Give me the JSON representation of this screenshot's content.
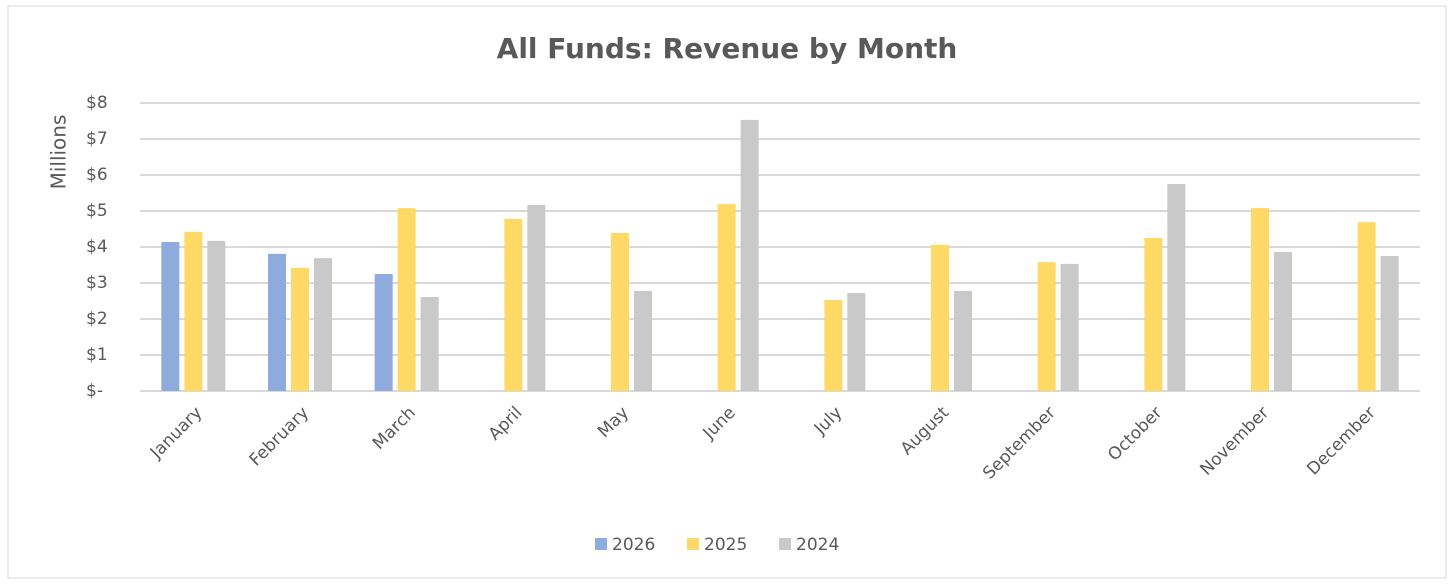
{
  "chart_data": {
    "type": "bar",
    "title": "All Funds: Revenue by Month",
    "y_label": "Millions",
    "categories": [
      "January",
      "February",
      "March",
      "April",
      "May",
      "June",
      "July",
      "August",
      "September",
      "October",
      "November",
      "December"
    ],
    "series": [
      {
        "name": "2026",
        "color": "#8faadc",
        "values": [
          4.14,
          3.81,
          3.25,
          null,
          null,
          null,
          null,
          null,
          null,
          null,
          null,
          null
        ]
      },
      {
        "name": "2025",
        "color": "#ffd966",
        "values": [
          4.42,
          3.42,
          5.08,
          4.78,
          4.39,
          5.19,
          2.53,
          4.06,
          3.58,
          4.25,
          5.08,
          4.69
        ]
      },
      {
        "name": "2024",
        "color": "#c9c9c9",
        "values": [
          4.17,
          3.69,
          2.61,
          5.17,
          2.78,
          7.53,
          2.72,
          2.78,
          3.53,
          5.75,
          3.86,
          3.75
        ]
      }
    ],
    "ylim": [
      0,
      8
    ],
    "yticks": [
      {
        "value": 0,
        "label": "$-"
      },
      {
        "value": 1,
        "label": "$1"
      },
      {
        "value": 2,
        "label": "$2"
      },
      {
        "value": 3,
        "label": "$3"
      },
      {
        "value": 4,
        "label": "$4"
      },
      {
        "value": 5,
        "label": "$5"
      },
      {
        "value": 6,
        "label": "$6"
      },
      {
        "value": 7,
        "label": "$7"
      },
      {
        "value": 8,
        "label": "$8"
      }
    ],
    "grid": true,
    "legend": "bottom"
  }
}
